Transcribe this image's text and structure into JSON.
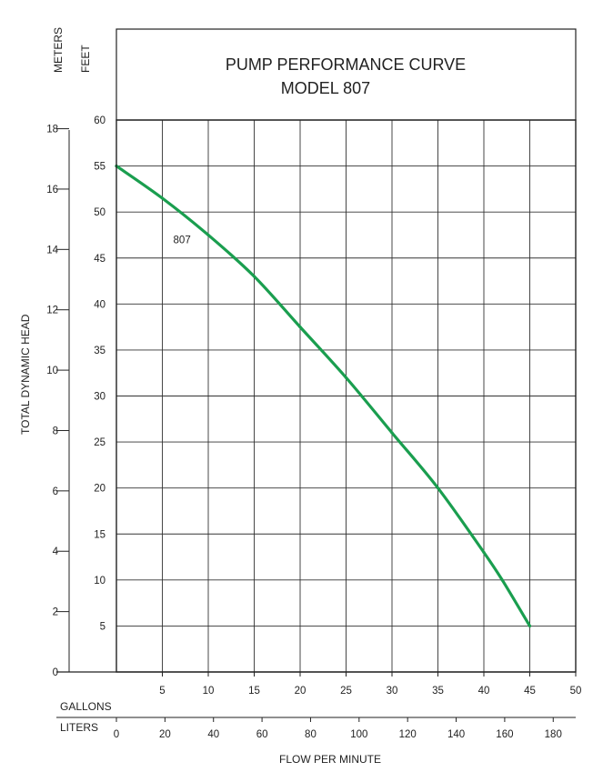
{
  "chart_data": {
    "type": "line",
    "title": "PUMP PERFORMANCE CURVE",
    "subtitle": "MODEL 807",
    "left_axis_meters_label": "METERS",
    "left_axis_feet_label": "FEET",
    "ylabel": "TOTAL DYNAMIC HEAD",
    "xlabel": "FLOW PER MINUTE",
    "x_gallons_label": "GALLONS",
    "x_liters_label": "LITERS",
    "grid": true,
    "feet_ticks": [
      "5",
      "10",
      "15",
      "20",
      "25",
      "30",
      "35",
      "40",
      "45",
      "50",
      "55",
      "60"
    ],
    "meters_ticks": [
      "0",
      "2",
      "4",
      "6",
      "8",
      "10",
      "12",
      "14",
      "16",
      "18"
    ],
    "gallons_ticks": [
      "5",
      "10",
      "15",
      "20",
      "25",
      "30",
      "35",
      "40",
      "45",
      "50"
    ],
    "liters_ticks": [
      "0",
      "20",
      "40",
      "60",
      "80",
      "100",
      "120",
      "140",
      "160",
      "180"
    ],
    "xlim_gallons": [
      0,
      50
    ],
    "ylim_feet": [
      0,
      60
    ],
    "series": [
      {
        "name": "807",
        "color": "#1a9e4f",
        "x": [
          0,
          5,
          10,
          15,
          20,
          25,
          30,
          35,
          40,
          42,
          45
        ],
        "y": [
          55,
          51.5,
          47.5,
          43,
          37.5,
          32,
          26,
          20,
          13,
          10,
          5
        ]
      }
    ]
  }
}
